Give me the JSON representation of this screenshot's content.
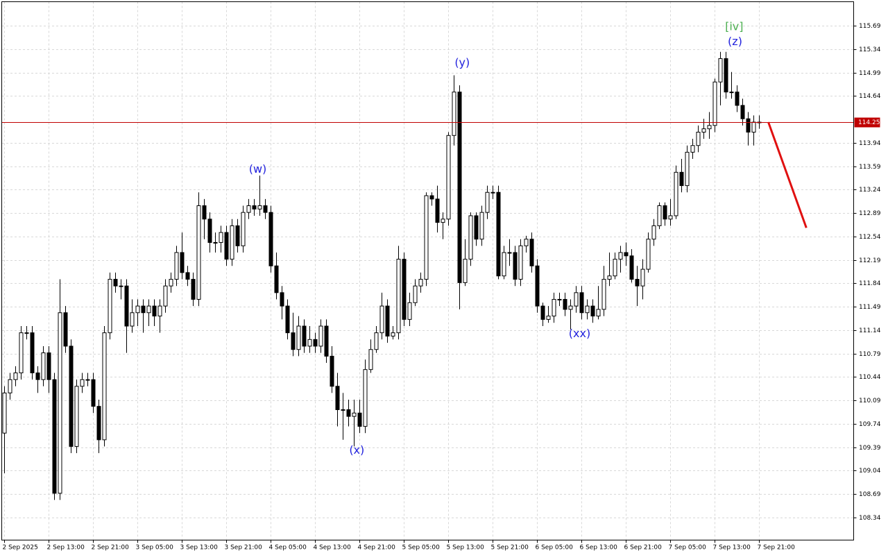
{
  "chart_data": {
    "type": "candlestick",
    "open": [
      109.6,
      110.2,
      110.4,
      110.5,
      111.1,
      111.1,
      110.5,
      110.4,
      110.8,
      110.4,
      108.7,
      111.4,
      110.9,
      109.4,
      110.3,
      110.4,
      110.4,
      110.0,
      109.5,
      111.1,
      111.9,
      111.8,
      111.8,
      111.2,
      111.4,
      111.5,
      111.4,
      111.5,
      111.35,
      111.5,
      111.8,
      111.9,
      112.3,
      112.0,
      111.9,
      111.6,
      113.0,
      112.8,
      112.45,
      112.45,
      112.6,
      112.2,
      112.7,
      112.4,
      112.9,
      113.0,
      112.95,
      113.0,
      112.9,
      112.1,
      111.7,
      111.5,
      111.1,
      110.85,
      111.2,
      110.9,
      111.0,
      110.9,
      111.2,
      110.75,
      110.3,
      109.95,
      109.95,
      109.85,
      109.9,
      109.7,
      110.55,
      110.85,
      111.1,
      111.5,
      111.05,
      111.1,
      112.2,
      111.3,
      111.55,
      111.8,
      111.9,
      113.15,
      113.1,
      112.75,
      112.8,
      114.05,
      114.7,
      111.85,
      112.2,
      112.85,
      112.5,
      112.9,
      113.2,
      113.2,
      111.95,
      112.3,
      112.3,
      111.9,
      112.4,
      112.5,
      112.1,
      111.5,
      111.3,
      111.35,
      111.6,
      111.6,
      111.45,
      111.5,
      111.7,
      111.4,
      111.5,
      111.35,
      111.45,
      111.9,
      111.95,
      112.2,
      112.3,
      112.25,
      111.9,
      111.8,
      112.05,
      112.5,
      112.7,
      113.0,
      112.8,
      112.85,
      113.5,
      113.3,
      113.8,
      113.9,
      114.1,
      114.15,
      114.2,
      114.85,
      115.2,
      114.7,
      114.7,
      114.5,
      114.3,
      114.1,
      114.25
    ],
    "high": [
      110.3,
      110.5,
      110.6,
      111.2,
      111.2,
      111.2,
      110.6,
      110.9,
      110.9,
      110.5,
      111.9,
      111.5,
      111.0,
      110.4,
      110.5,
      110.5,
      110.5,
      110.1,
      111.2,
      112.0,
      112.0,
      111.9,
      111.9,
      111.6,
      111.6,
      111.6,
      111.6,
      111.6,
      111.6,
      111.9,
      112.0,
      112.4,
      112.6,
      112.1,
      112.0,
      113.2,
      113.1,
      112.9,
      112.6,
      112.7,
      112.7,
      112.8,
      112.8,
      113.0,
      113.1,
      113.1,
      113.45,
      113.1,
      113.0,
      112.3,
      111.8,
      111.6,
      111.4,
      111.35,
      111.3,
      111.2,
      111.1,
      111.3,
      111.3,
      110.9,
      110.5,
      110.2,
      110.1,
      110.1,
      110.1,
      110.7,
      111.0,
      111.2,
      111.7,
      111.6,
      111.2,
      112.4,
      112.3,
      111.7,
      111.9,
      112.0,
      113.2,
      113.2,
      113.3,
      112.9,
      114.1,
      114.95,
      114.8,
      112.5,
      112.9,
      112.9,
      113.0,
      113.3,
      113.3,
      113.3,
      112.4,
      112.5,
      112.4,
      112.5,
      112.55,
      112.6,
      112.2,
      111.55,
      111.5,
      111.7,
      111.7,
      111.7,
      111.6,
      111.8,
      111.8,
      111.6,
      111.6,
      111.8,
      112.1,
      112.3,
      112.3,
      112.4,
      112.45,
      112.35,
      112.1,
      112.2,
      112.6,
      112.8,
      113.05,
      113.05,
      113.1,
      113.6,
      113.7,
      113.9,
      114.0,
      114.2,
      114.3,
      114.4,
      114.9,
      115.3,
      115.3,
      115.0,
      114.8,
      114.6,
      114.4,
      114.35,
      114.35
    ],
    "low": [
      109.0,
      110.1,
      110.3,
      110.4,
      111.0,
      110.4,
      110.2,
      110.3,
      110.2,
      108.6,
      108.6,
      110.8,
      109.3,
      109.3,
      110.2,
      110.3,
      109.9,
      109.3,
      109.4,
      111.0,
      111.7,
      111.6,
      110.8,
      111.1,
      111.2,
      111.1,
      111.2,
      111.2,
      111.1,
      111.4,
      111.7,
      111.8,
      111.9,
      111.8,
      111.5,
      111.5,
      112.5,
      112.3,
      112.3,
      112.3,
      112.1,
      112.1,
      112.3,
      112.3,
      112.8,
      112.85,
      112.85,
      112.8,
      112.0,
      111.6,
      111.3,
      111.0,
      110.75,
      110.75,
      110.8,
      110.8,
      110.8,
      110.8,
      110.65,
      110.2,
      109.7,
      109.5,
      109.7,
      109.4,
      109.6,
      109.6,
      110.5,
      110.8,
      111.0,
      110.95,
      111.0,
      111.0,
      111.2,
      111.2,
      111.5,
      111.7,
      111.8,
      113.0,
      112.6,
      112.5,
      112.7,
      113.9,
      111.45,
      111.8,
      112.1,
      112.4,
      112.4,
      112.8,
      113.1,
      111.9,
      111.9,
      112.1,
      111.8,
      111.8,
      112.3,
      112.0,
      111.4,
      111.2,
      111.25,
      111.25,
      111.5,
      111.35,
      111.15,
      111.4,
      111.3,
      111.3,
      111.25,
      111.3,
      111.35,
      111.8,
      111.9,
      112.0,
      112.1,
      111.85,
      111.5,
      111.6,
      112.0,
      112.4,
      112.65,
      112.7,
      112.7,
      112.8,
      113.2,
      113.2,
      113.7,
      113.8,
      114.0,
      114.0,
      114.1,
      114.5,
      114.6,
      114.6,
      114.4,
      114.2,
      113.9,
      113.9,
      114.15
    ],
    "close": [
      110.2,
      110.4,
      110.5,
      111.1,
      111.1,
      110.5,
      110.4,
      110.8,
      110.4,
      108.7,
      111.4,
      110.9,
      109.4,
      110.3,
      110.4,
      110.4,
      110.0,
      109.5,
      111.1,
      111.9,
      111.8,
      111.8,
      111.2,
      111.4,
      111.5,
      111.4,
      111.5,
      111.35,
      111.5,
      111.8,
      111.9,
      112.3,
      112.0,
      111.9,
      111.6,
      113.0,
      112.8,
      112.45,
      112.45,
      112.6,
      112.2,
      112.7,
      112.4,
      112.9,
      113.0,
      112.95,
      113.0,
      112.9,
      112.1,
      111.7,
      111.5,
      111.1,
      110.85,
      111.2,
      110.9,
      111.0,
      110.9,
      111.2,
      110.75,
      110.3,
      109.95,
      109.95,
      109.85,
      109.9,
      109.7,
      110.55,
      110.85,
      111.1,
      111.5,
      111.05,
      111.1,
      112.2,
      111.3,
      111.55,
      111.8,
      111.9,
      113.15,
      113.1,
      112.75,
      112.8,
      114.05,
      114.7,
      111.85,
      112.2,
      112.85,
      112.5,
      112.9,
      113.2,
      113.2,
      111.95,
      112.3,
      112.3,
      111.9,
      112.4,
      112.5,
      112.1,
      111.5,
      111.3,
      111.35,
      111.6,
      111.6,
      111.45,
      111.5,
      111.7,
      111.4,
      111.5,
      111.35,
      111.45,
      111.9,
      111.95,
      112.2,
      112.3,
      112.25,
      111.9,
      111.8,
      112.05,
      112.5,
      112.7,
      113.0,
      112.8,
      112.85,
      113.5,
      113.3,
      113.8,
      113.9,
      114.1,
      114.15,
      114.2,
      114.85,
      115.2,
      114.7,
      114.7,
      114.5,
      114.3,
      114.1,
      114.25,
      114.25
    ],
    "up_color": "#ffffff",
    "down_color": "#000000",
    "ylim": [
      108.0,
      116.05
    ],
    "yticks": [
      108.34,
      108.69,
      109.04,
      109.39,
      109.74,
      110.09,
      110.44,
      110.79,
      111.14,
      111.49,
      111.84,
      112.19,
      112.54,
      112.89,
      113.24,
      113.59,
      113.94,
      114.64,
      114.99,
      115.34,
      115.69
    ],
    "xticks": [
      {
        "value": 0,
        "label": "2 Sep 2025"
      },
      {
        "value": 8,
        "label": "2 Sep 13:00"
      },
      {
        "value": 16,
        "label": "2 Sep 21:00"
      },
      {
        "value": 24,
        "label": "3 Sep 05:00"
      },
      {
        "value": 32,
        "label": "3 Sep 13:00"
      },
      {
        "value": 40,
        "label": "3 Sep 21:00"
      },
      {
        "value": 48,
        "label": "4 Sep 05:00"
      },
      {
        "value": 56,
        "label": "4 Sep 13:00"
      },
      {
        "value": 64,
        "label": "4 Sep 21:00"
      },
      {
        "value": 72,
        "label": "5 Sep 05:00"
      },
      {
        "value": 80,
        "label": "5 Sep 13:00"
      },
      {
        "value": 88,
        "label": "5 Sep 21:00"
      },
      {
        "value": 96,
        "label": "6 Sep 05:00"
      },
      {
        "value": 104,
        "label": "6 Sep 13:00"
      },
      {
        "value": 112,
        "label": "6 Sep 21:00"
      },
      {
        "value": 120,
        "label": "7 Sep 05:00"
      },
      {
        "value": 128,
        "label": "7 Sep 13:00"
      },
      {
        "value": 136,
        "label": "7 Sep 21:00"
      }
    ],
    "grid": true,
    "price_line": {
      "value": 114.25,
      "color": "#c00000"
    },
    "annotations": [
      {
        "text": "(w)",
        "x": 45.75,
        "y": 113.54,
        "color": "#2222dd"
      },
      {
        "text": "(x)",
        "x": 63.6,
        "y": 109.34,
        "color": "#2222dd"
      },
      {
        "text": "(y)",
        "x": 82.6,
        "y": 115.13,
        "color": "#2222dd"
      },
      {
        "text": "(xx)",
        "x": 103.75,
        "y": 111.08,
        "color": "#2222dd"
      },
      {
        "text": "(z)",
        "x": 131.75,
        "y": 115.45,
        "color": "#2222dd"
      },
      {
        "text": "[iv]",
        "x": 131.6,
        "y": 115.67,
        "color": "#4caf50"
      }
    ],
    "arrow": {
      "x": [
        137.75,
        144.6
      ],
      "y": [
        114.25,
        112.67
      ],
      "color": "#e01010"
    }
  }
}
